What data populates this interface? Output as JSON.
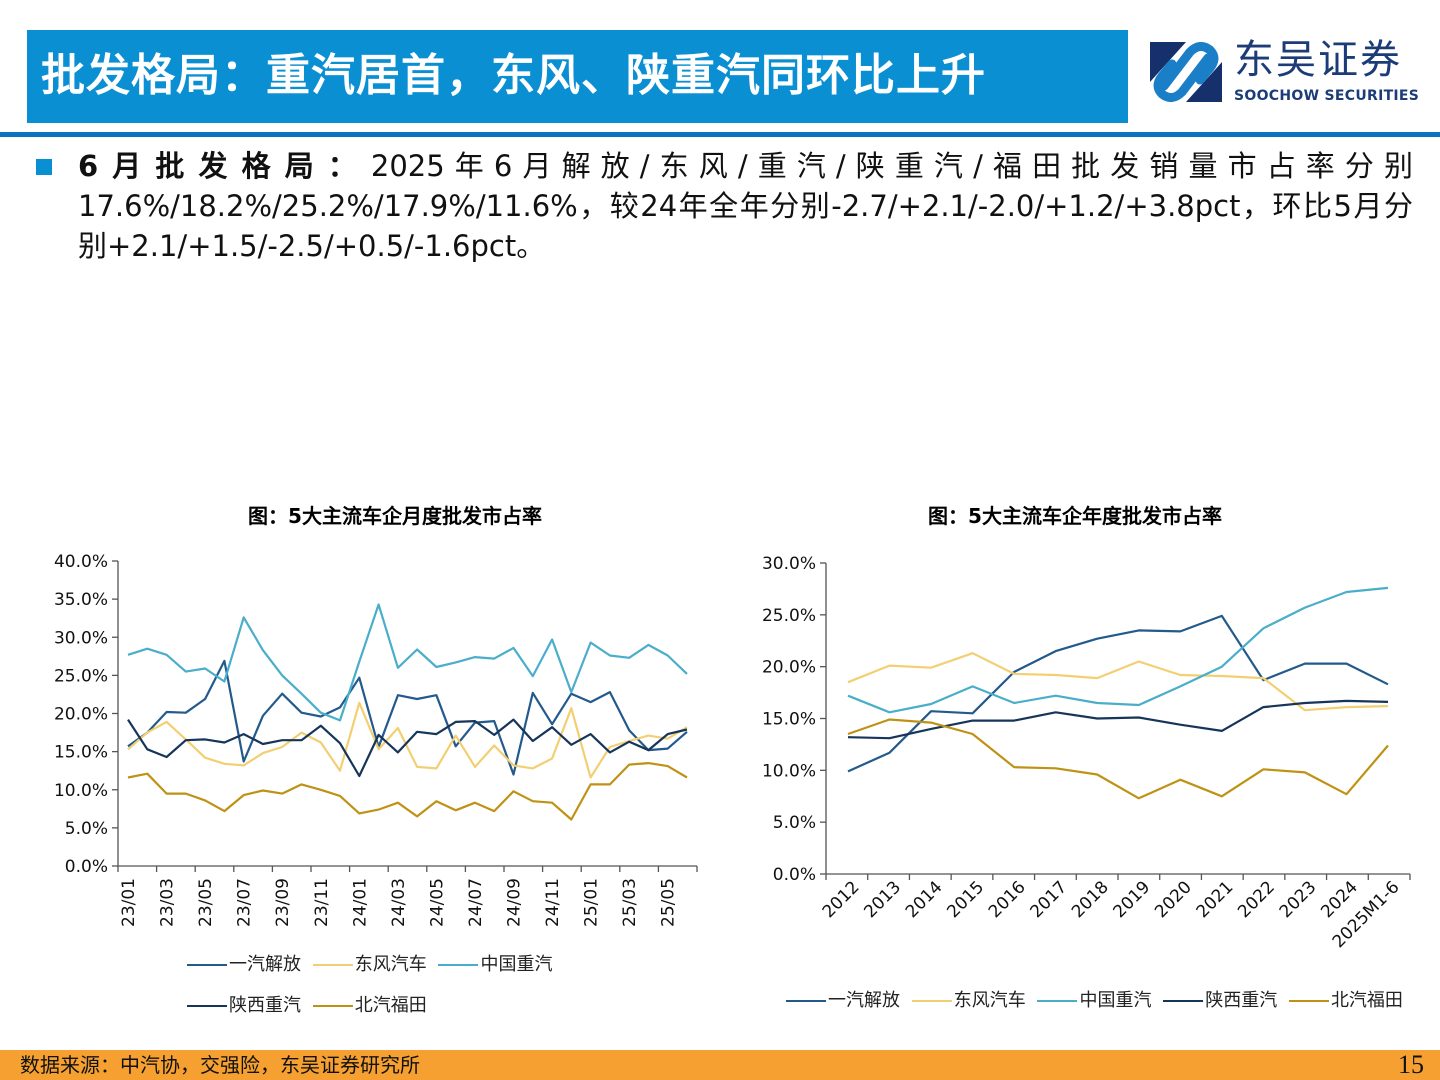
{
  "header": {
    "title": "批发格局：重汽居首，东风、陕重汽同环比上升",
    "logo_cn": "东吴证券",
    "logo_en": "SOOCHOW SECURITIES"
  },
  "body": {
    "lead": "6月批发格局：",
    "text": "2025年6月解放/东风/重汽/陕重汽/福田批发销量市占率分别17.6%/18.2%/25.2%/17.9%/11.6%，较24年全年分别-2.7/+2.1/-2.0/+1.2/+3.8pct，环比5月分别+2.1/+1.5/-2.5/+0.5/-1.6pct。"
  },
  "colors": {
    "一汽解放": "#235a8c",
    "东风汽车": "#f2cf72",
    "中国重汽": "#4aaecb",
    "陕西重汽": "#16355a",
    "北汽福田": "#bf9214"
  },
  "chart_data": [
    {
      "type": "line",
      "title": "图：5大主流车企月度批发市占率",
      "x": [
        "23/01",
        "23/02",
        "23/03",
        "23/04",
        "23/05",
        "23/06",
        "23/07",
        "23/08",
        "23/09",
        "23/10",
        "23/11",
        "23/12",
        "24/01",
        "24/02",
        "24/03",
        "24/04",
        "24/05",
        "24/06",
        "24/07",
        "24/08",
        "24/09",
        "24/10",
        "24/11",
        "24/12",
        "25/01",
        "25/02",
        "25/03",
        "25/04",
        "25/05",
        "25/06"
      ],
      "tick_labels": [
        "23/01",
        "23/03",
        "23/05",
        "23/07",
        "23/09",
        "23/11",
        "24/01",
        "24/03",
        "24/05",
        "24/07",
        "24/09",
        "24/11",
        "25/01",
        "25/03",
        "25/05"
      ],
      "ylim": [
        0,
        40
      ],
      "yticks": [
        "0.0%",
        "5.0%",
        "10.0%",
        "15.0%",
        "20.0%",
        "25.0%",
        "30.0%",
        "35.0%",
        "40.0%"
      ],
      "grid": false,
      "legend_placement": "bottom",
      "series": [
        {
          "name": "一汽解放",
          "values": [
            15.7,
            17.5,
            20.2,
            20.1,
            21.9,
            26.9,
            13.7,
            19.7,
            22.6,
            20.1,
            19.6,
            20.8,
            24.7,
            15.6,
            22.4,
            21.9,
            22.4,
            15.7,
            18.8,
            19.0,
            12.0,
            22.7,
            18.6,
            22.6,
            21.5,
            22.8,
            17.8,
            15.2,
            15.4,
            17.6
          ]
        },
        {
          "name": "东风汽车",
          "values": [
            15.3,
            17.5,
            18.9,
            16.6,
            14.2,
            13.4,
            13.2,
            14.8,
            15.6,
            17.5,
            16.2,
            12.5,
            21.4,
            15.3,
            18.1,
            13.0,
            12.8,
            17.1,
            13.0,
            15.8,
            13.2,
            12.8,
            14.1,
            20.7,
            11.6,
            15.6,
            16.4,
            17.1,
            16.7,
            18.2
          ]
        },
        {
          "name": "中国重汽",
          "values": [
            27.7,
            28.5,
            27.7,
            25.5,
            25.9,
            24.2,
            32.6,
            28.3,
            25.0,
            22.6,
            20.1,
            19.1,
            26.8,
            34.3,
            26.0,
            28.4,
            26.1,
            26.7,
            27.4,
            27.2,
            28.6,
            24.9,
            29.7,
            22.8,
            29.3,
            27.6,
            27.3,
            29.0,
            27.6,
            25.2
          ]
        },
        {
          "name": "陕西重汽",
          "values": [
            19.2,
            15.3,
            14.3,
            16.5,
            16.6,
            16.2,
            17.3,
            16.0,
            16.5,
            16.5,
            18.4,
            16.1,
            11.8,
            17.2,
            14.9,
            17.6,
            17.3,
            18.9,
            19.0,
            17.2,
            19.2,
            16.4,
            18.2,
            15.9,
            17.3,
            14.9,
            16.3,
            15.2,
            17.3,
            17.9
          ]
        },
        {
          "name": "北汽福田",
          "values": [
            11.6,
            12.1,
            9.5,
            9.5,
            8.6,
            7.2,
            9.3,
            9.9,
            9.5,
            10.7,
            10.0,
            9.2,
            6.9,
            7.4,
            8.3,
            6.5,
            8.5,
            7.3,
            8.3,
            7.2,
            9.8,
            8.5,
            8.3,
            6.1,
            10.7,
            10.7,
            13.3,
            13.5,
            13.1,
            11.6
          ]
        }
      ]
    },
    {
      "type": "line",
      "title": "图：5大主流车企年度批发市占率",
      "x": [
        "2012",
        "2013",
        "2014",
        "2015",
        "2016",
        "2017",
        "2018",
        "2019",
        "2020",
        "2021",
        "2022",
        "2023",
        "2024",
        "2025M1-6"
      ],
      "ylim": [
        0,
        30
      ],
      "yticks": [
        "0.0%",
        "5.0%",
        "10.0%",
        "15.0%",
        "20.0%",
        "25.0%",
        "30.0%"
      ],
      "grid": false,
      "legend_placement": "bottom",
      "series": [
        {
          "name": "一汽解放",
          "values": [
            9.9,
            11.7,
            15.7,
            15.5,
            19.5,
            21.5,
            22.7,
            23.5,
            23.4,
            24.9,
            18.7,
            20.3,
            20.3,
            18.3
          ]
        },
        {
          "name": "东风汽车",
          "values": [
            18.5,
            20.1,
            19.9,
            21.3,
            19.3,
            19.2,
            18.9,
            20.5,
            19.2,
            19.1,
            18.9,
            15.8,
            16.1,
            16.2
          ]
        },
        {
          "name": "中国重汽",
          "values": [
            17.2,
            15.6,
            16.4,
            18.1,
            16.5,
            17.2,
            16.5,
            16.3,
            18.1,
            20.0,
            23.7,
            25.7,
            27.2,
            27.6
          ]
        },
        {
          "name": "陕西重汽",
          "values": [
            13.2,
            13.1,
            14.0,
            14.8,
            14.8,
            15.6,
            15.0,
            15.1,
            14.4,
            13.8,
            16.1,
            16.5,
            16.7,
            16.6
          ]
        },
        {
          "name": "北汽福田",
          "values": [
            13.5,
            14.9,
            14.6,
            13.5,
            10.3,
            10.2,
            9.6,
            7.3,
            9.1,
            7.5,
            10.1,
            9.8,
            7.7,
            12.4
          ]
        }
      ]
    }
  ],
  "footer": {
    "source": "数据来源：中汽协，交强险，东吴证券研究所",
    "page": "15"
  }
}
